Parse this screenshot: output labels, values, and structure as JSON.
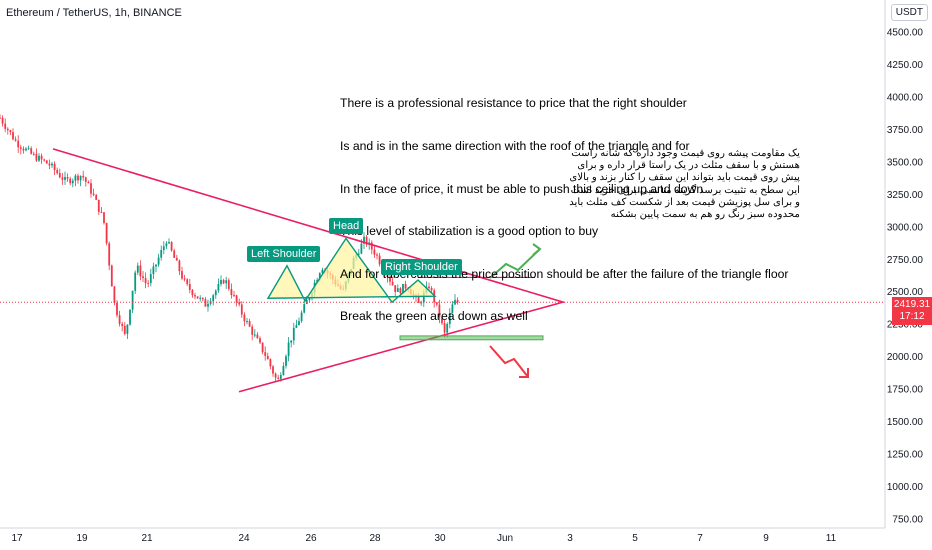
{
  "header": {
    "symbol_title": "Ethereum / TetherUS, 1h, BINANCE"
  },
  "price_scale": {
    "currency": "USDT",
    "last_price": "2419.31",
    "countdown": "17:12"
  },
  "annotations": {
    "english_note": [
      "There is a professional resistance to price that the right shoulder",
      "Is and is in the same direction with the roof of the triangle and for",
      "In the face of price, it must be able to push this ceiling up and down",
      "This level of stabilization is a good option to buy",
      "And for tuberculosis the price position should be after the failure of the triangle floor",
      "Break the green area down as well"
    ],
    "persian_note": [
      "یک مقاومت پیشه روی قیمت وجود داره که شانه راست",
      "هستش و با سقف مثلث در یک راستا قرار داره و برای",
      "پیش روی قیمت باید بتواند این سقف را کنار بزند و بالای",
      "این سطح به تثبیت برسد گزینه مناسبی برای خرید است",
      "و برای سل پوزیشن قیمت بعد از شکست کف مثلث باید",
      "محدوده سبز رنگ رو هم به سمت پایین بشکنه"
    ],
    "pattern_labels": {
      "left_shoulder": "Left Shoulder",
      "head": "Head",
      "right_shoulder": "Right Shoulder"
    }
  },
  "colors": {
    "up": "#089981",
    "down": "#f23645",
    "triangle": "#e91e63",
    "pattern_fill": "#fff59d",
    "support_zone": "#4caf50",
    "arrow_up": "#4caf50",
    "arrow_down": "#f23645"
  },
  "chart_data": {
    "type": "candlestick",
    "title": "Ethereum / TetherUS, 1h, BINANCE",
    "y_axis": {
      "ticks": [
        4500,
        4250,
        4000,
        3750,
        3500,
        3250,
        3000,
        2750,
        2500,
        2250,
        2000,
        1750,
        1500,
        1250,
        1000,
        750
      ],
      "min": 750,
      "max": 4500,
      "side": "right"
    },
    "x_axis": {
      "ticks": [
        "17",
        "19",
        "21",
        "24",
        "26",
        "28",
        "30",
        "Jun",
        "3",
        "5",
        "7",
        "9",
        "11"
      ]
    },
    "last_price": 2419.31,
    "price_path": [
      [
        "17",
        3840
      ],
      [
        "17",
        3650
      ],
      [
        "17",
        3550
      ],
      [
        "17",
        3480
      ],
      [
        "17",
        3350
      ],
      [
        "19",
        3400
      ],
      [
        "19",
        3250
      ],
      [
        "19",
        3050
      ],
      [
        "19",
        2400
      ],
      [
        "19",
        2150
      ],
      [
        "19",
        2700
      ],
      [
        "21",
        2550
      ],
      [
        "21",
        2900
      ],
      [
        "21",
        2550
      ],
      [
        "21",
        2400
      ],
      [
        "21",
        2600
      ],
      [
        "24",
        2300
      ],
      [
        "24",
        2150
      ],
      [
        "24",
        2000
      ],
      [
        "24",
        1800
      ],
      [
        "24",
        2100
      ],
      [
        "24",
        2300
      ],
      [
        "26",
        2500
      ],
      [
        "26",
        2700
      ],
      [
        "26",
        2600
      ],
      [
        "26",
        2500
      ],
      [
        "26",
        2750
      ],
      [
        "26",
        2900
      ],
      [
        "28",
        2800
      ],
      [
        "28",
        2650
      ],
      [
        "28",
        2500
      ],
      [
        "28",
        2550
      ],
      [
        "28",
        2400
      ],
      [
        "28",
        2550
      ],
      [
        "30",
        2300
      ],
      [
        "30",
        2170
      ],
      [
        "30",
        2300
      ],
      [
        "30",
        2420
      ]
    ],
    "patterns": {
      "triangle": {
        "upper": [
          [
            "19",
            3600
          ],
          [
            "Jun",
            2420
          ]
        ],
        "lower": [
          [
            "24",
            1730
          ],
          [
            "Jun",
            2420
          ]
        ]
      },
      "head_and_shoulders": {
        "left_shoulder": 2700,
        "head": 2910,
        "right_shoulder": 2590,
        "neckline": 2450
      },
      "resistance": 2610,
      "support_zone": [
        2130,
        2160
      ],
      "scenarios": [
        "up",
        "down"
      ]
    }
  }
}
